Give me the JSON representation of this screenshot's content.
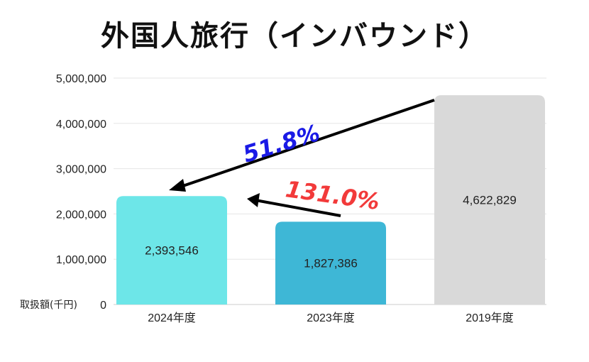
{
  "title": "外国人旅行（インバウンド）",
  "y_unit_label": "取扱額(千円)",
  "annotations": {
    "pct_vs_2019": "51.8%",
    "pct_vs_2023": "131.0%"
  },
  "colors": {
    "bar_2024": "#6de6e8",
    "bar_2023": "#3eb7d6",
    "bar_2019": "#d9d9d9",
    "pct_vs_2019": "#1a1ae6",
    "pct_vs_2023": "#f23a3a",
    "arrow": "#000000"
  },
  "chart_data": {
    "type": "bar",
    "title": "外国人旅行（インバウンド）",
    "ylabel": "取扱額(千円)",
    "xlabel": "",
    "categories": [
      "2024年度",
      "2023年度",
      "2019年度"
    ],
    "values": [
      2393546,
      1827386,
      4622829
    ],
    "value_labels": [
      "2,393,546",
      "1,827,386",
      "4,622,829"
    ],
    "ylim": [
      0,
      5000000
    ],
    "yticks": [
      0,
      1000000,
      2000000,
      3000000,
      4000000,
      5000000
    ],
    "ytick_labels": [
      "0",
      "1,000,000",
      "2,000,000",
      "3,000,000",
      "4,000,000",
      "5,000,000"
    ],
    "grid": true,
    "legend": "none"
  }
}
